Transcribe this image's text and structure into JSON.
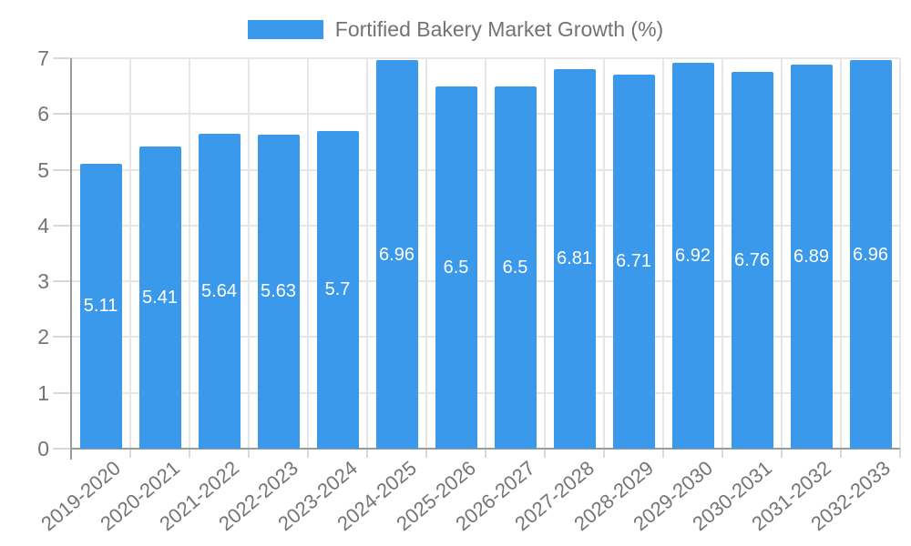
{
  "chart_data": {
    "type": "bar",
    "title": "Fortified Bakery Market Growth (%)",
    "categories": [
      "2019-2020",
      "2020-2021",
      "2021-2022",
      "2022-2023",
      "2023-2024",
      "2024-2025",
      "2025-2026",
      "2026-2027",
      "2027-2028",
      "2028-2029",
      "2029-2030",
      "2030-2031",
      "2031-2032",
      "2032-2033"
    ],
    "values": [
      5.11,
      5.41,
      5.64,
      5.63,
      5.7,
      6.96,
      6.5,
      6.5,
      6.81,
      6.71,
      6.92,
      6.76,
      6.89,
      6.96
    ],
    "value_labels": [
      "5.11",
      "5.41",
      "5.64",
      "5.63",
      "5.7",
      "6.96",
      "6.5",
      "6.5",
      "6.81",
      "6.71",
      "6.92",
      "6.76",
      "6.89",
      "6.96"
    ],
    "y_tick_labels": [
      "0",
      "1",
      "2",
      "3",
      "4",
      "5",
      "6",
      "7"
    ],
    "ylim": [
      0,
      7
    ],
    "xlabel": "",
    "ylabel": "",
    "grid": "on",
    "legend_position": "top-center",
    "colors": {
      "bar": "#3b99ec",
      "grid": "#e6e6e6",
      "grid_tick": "#d9d9d9",
      "axis": "#9a9a9a",
      "tick_text": "#757575",
      "legend_text": "#737373",
      "bar_label_text": "#ffffff",
      "background": "#ffffff"
    }
  }
}
